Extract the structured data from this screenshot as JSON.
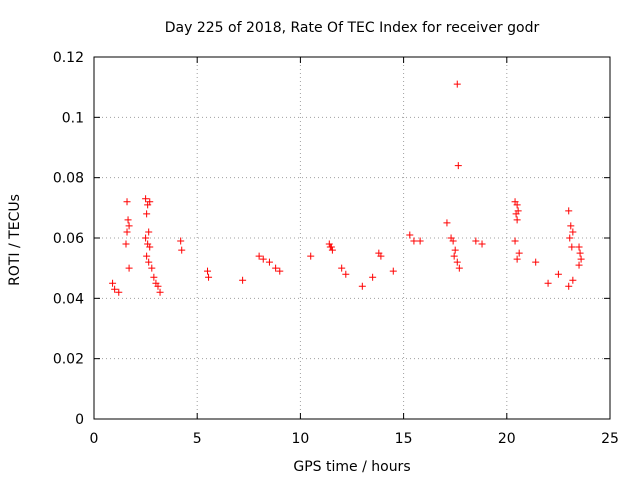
{
  "chart_data": {
    "type": "scatter",
    "title": "Day 225 of 2018, Rate Of TEC Index for receiver godr",
    "xlabel": "GPS time / hours",
    "ylabel": "ROTI / TECUs",
    "xlim": [
      0,
      25
    ],
    "ylim": [
      0,
      0.12
    ],
    "xticks": [
      0,
      5,
      10,
      15,
      20,
      25
    ],
    "xtick_labels": [
      "0",
      "5",
      "10",
      "15",
      "20",
      "25"
    ],
    "yticks": [
      0,
      0.02,
      0.04,
      0.06,
      0.08,
      0.1,
      0.12
    ],
    "ytick_labels": [
      "0",
      "0.02",
      "0.04",
      "0.06",
      "0.08",
      "0.1",
      "0.12"
    ],
    "grid": true,
    "marker": "+",
    "color": "#ff0000",
    "series": [
      {
        "name": "ROTI",
        "points": [
          [
            1.6,
            0.072
          ],
          [
            1.65,
            0.066
          ],
          [
            1.7,
            0.064
          ],
          [
            1.6,
            0.062
          ],
          [
            1.55,
            0.058
          ],
          [
            1.7,
            0.05
          ],
          [
            2.5,
            0.073
          ],
          [
            2.6,
            0.071
          ],
          [
            2.7,
            0.072
          ],
          [
            2.55,
            0.068
          ],
          [
            2.65,
            0.062
          ],
          [
            2.5,
            0.06
          ],
          [
            2.6,
            0.058
          ],
          [
            2.7,
            0.057
          ],
          [
            2.55,
            0.054
          ],
          [
            2.65,
            0.052
          ],
          [
            2.8,
            0.05
          ],
          [
            2.9,
            0.047
          ],
          [
            3.0,
            0.045
          ],
          [
            3.1,
            0.044
          ],
          [
            3.2,
            0.042
          ],
          [
            0.9,
            0.045
          ],
          [
            1.0,
            0.043
          ],
          [
            1.2,
            0.042
          ],
          [
            4.2,
            0.059
          ],
          [
            4.25,
            0.056
          ],
          [
            5.5,
            0.049
          ],
          [
            5.55,
            0.047
          ],
          [
            7.2,
            0.046
          ],
          [
            8.0,
            0.054
          ],
          [
            8.2,
            0.053
          ],
          [
            8.5,
            0.052
          ],
          [
            8.8,
            0.05
          ],
          [
            9.0,
            0.049
          ],
          [
            10.5,
            0.054
          ],
          [
            11.4,
            0.058
          ],
          [
            11.45,
            0.057
          ],
          [
            11.5,
            0.057
          ],
          [
            11.55,
            0.056
          ],
          [
            12.0,
            0.05
          ],
          [
            12.2,
            0.048
          ],
          [
            13.0,
            0.044
          ],
          [
            13.5,
            0.047
          ],
          [
            13.8,
            0.055
          ],
          [
            13.9,
            0.054
          ],
          [
            14.5,
            0.049
          ],
          [
            15.3,
            0.061
          ],
          [
            15.5,
            0.059
          ],
          [
            15.8,
            0.059
          ],
          [
            17.1,
            0.065
          ],
          [
            17.3,
            0.06
          ],
          [
            17.4,
            0.059
          ],
          [
            17.5,
            0.056
          ],
          [
            17.45,
            0.054
          ],
          [
            17.6,
            0.052
          ],
          [
            17.7,
            0.05
          ],
          [
            17.6,
            0.111
          ],
          [
            17.65,
            0.084
          ],
          [
            18.5,
            0.059
          ],
          [
            18.8,
            0.058
          ],
          [
            20.4,
            0.072
          ],
          [
            20.5,
            0.071
          ],
          [
            20.55,
            0.069
          ],
          [
            20.45,
            0.068
          ],
          [
            20.5,
            0.066
          ],
          [
            20.4,
            0.059
          ],
          [
            20.6,
            0.055
          ],
          [
            20.5,
            0.053
          ],
          [
            21.4,
            0.052
          ],
          [
            22.0,
            0.045
          ],
          [
            22.5,
            0.048
          ],
          [
            23.0,
            0.069
          ],
          [
            23.1,
            0.064
          ],
          [
            23.2,
            0.062
          ],
          [
            23.05,
            0.06
          ],
          [
            23.15,
            0.057
          ],
          [
            23.5,
            0.057
          ],
          [
            23.55,
            0.055
          ],
          [
            23.6,
            0.053
          ],
          [
            23.5,
            0.051
          ],
          [
            23.2,
            0.046
          ],
          [
            23.0,
            0.044
          ]
        ]
      }
    ]
  }
}
